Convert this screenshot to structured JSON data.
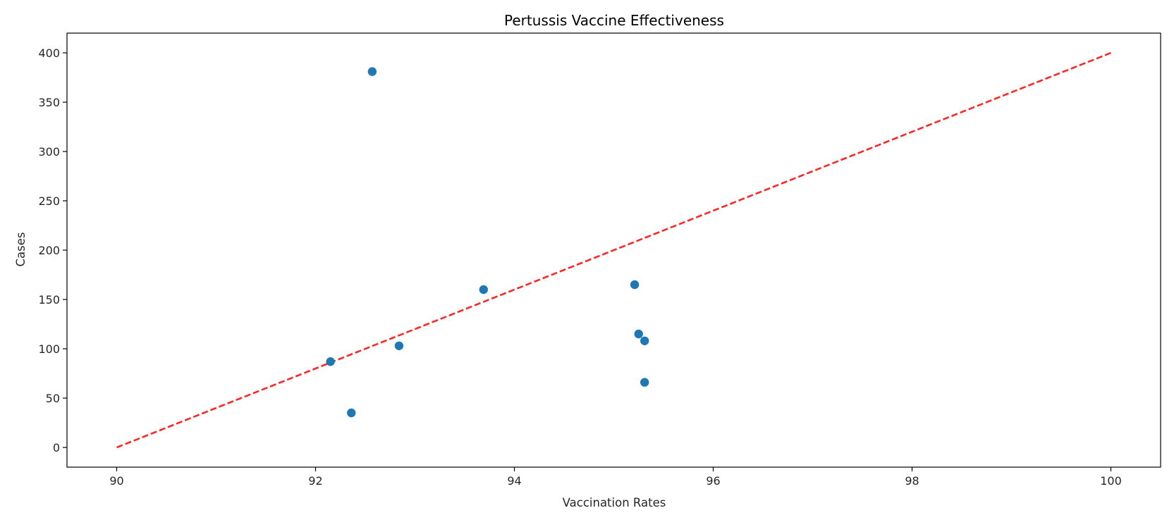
{
  "chart_data": {
    "type": "scatter",
    "title": "Pertussis Vaccine Effectiveness",
    "xlabel": "Vaccination Rates",
    "ylabel": "Cases",
    "xlim": [
      89.5,
      100.5
    ],
    "ylim": [
      -20,
      420
    ],
    "x_ticks": [
      90,
      92,
      94,
      96,
      98,
      100
    ],
    "y_ticks": [
      0,
      50,
      100,
      150,
      200,
      250,
      300,
      350,
      400
    ],
    "grid": false,
    "legend": "none",
    "series": [
      {
        "kind": "scatter",
        "color": "#1f77b4",
        "points": [
          {
            "x": 92.15,
            "y": 87
          },
          {
            "x": 92.36,
            "y": 35
          },
          {
            "x": 92.57,
            "y": 381
          },
          {
            "x": 92.84,
            "y": 103
          },
          {
            "x": 93.69,
            "y": 160
          },
          {
            "x": 95.21,
            "y": 165
          },
          {
            "x": 95.25,
            "y": 115
          },
          {
            "x": 95.31,
            "y": 108
          },
          {
            "x": 95.31,
            "y": 66
          }
        ]
      },
      {
        "kind": "line",
        "style": "dashed",
        "color": "#ff0000",
        "points": [
          {
            "x": 90,
            "y": 0
          },
          {
            "x": 100,
            "y": 400
          }
        ]
      }
    ]
  }
}
